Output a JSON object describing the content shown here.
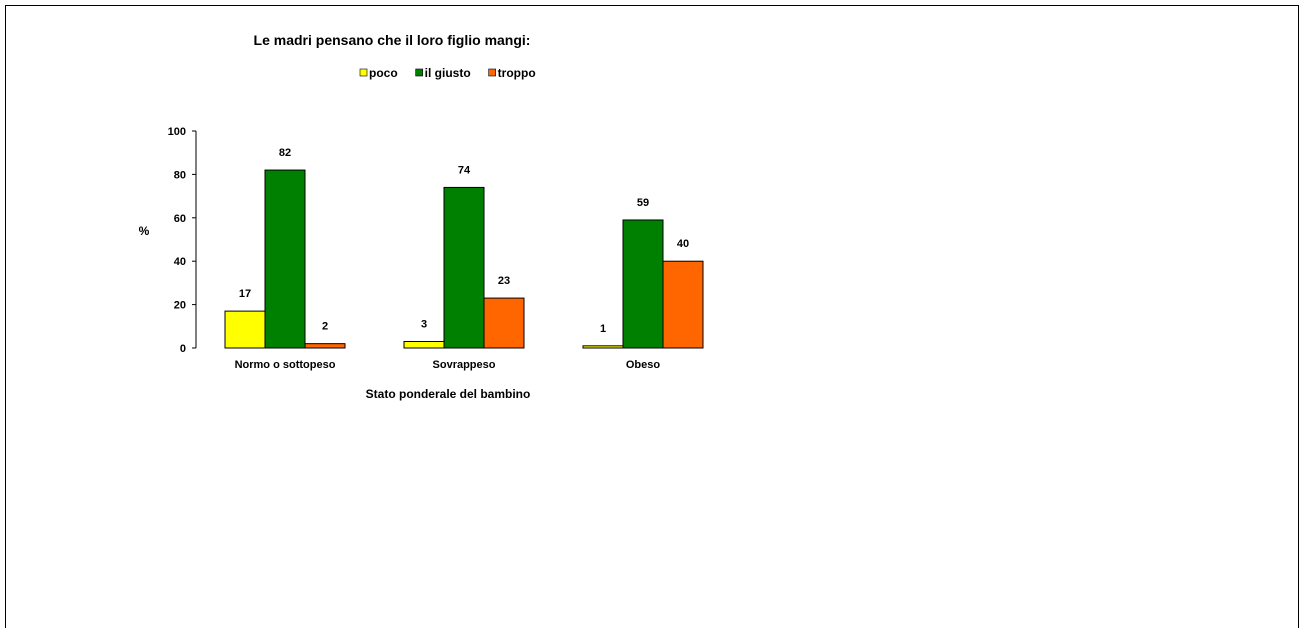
{
  "chart_data": {
    "type": "bar",
    "title": "Le madri pensano che il loro figlio mangi:",
    "xlabel": "Stato ponderale del bambino",
    "ylabel": "%",
    "ylim": [
      0,
      100
    ],
    "yticks": [
      0,
      20,
      40,
      60,
      80,
      100
    ],
    "categories": [
      "Normo o sottopeso",
      "Sovrappeso",
      "Obeso"
    ],
    "series": [
      {
        "name": "poco",
        "color": "#ffff00",
        "values": [
          17,
          3,
          1
        ]
      },
      {
        "name": "il giusto",
        "color": "#008000",
        "values": [
          82,
          74,
          59
        ]
      },
      {
        "name": "troppo",
        "color": "#ff6600",
        "values": [
          2,
          23,
          40
        ]
      }
    ],
    "legend_position": "top",
    "grid": false,
    "data_labels": true
  }
}
